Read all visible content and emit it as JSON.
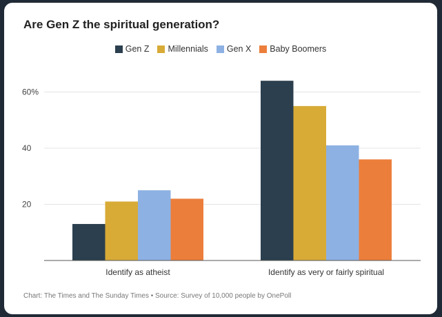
{
  "chart_data": {
    "type": "bar",
    "title": "Are Gen Z the spiritual generation?",
    "categories": [
      "Identify as atheist",
      "Identify as very or fairly spiritual"
    ],
    "series": [
      {
        "name": "Gen Z",
        "color": "#2b3f4e",
        "values": [
          13,
          64
        ]
      },
      {
        "name": "Millennials",
        "color": "#d8ab37",
        "values": [
          21,
          55
        ]
      },
      {
        "name": "Gen X",
        "color": "#8db1e3",
        "values": [
          25,
          41
        ]
      },
      {
        "name": "Baby Boomers",
        "color": "#ec7e3b",
        "values": [
          22,
          36
        ]
      }
    ],
    "yticks": [
      {
        "value": 20,
        "label": "20"
      },
      {
        "value": 40,
        "label": "40"
      },
      {
        "value": 60,
        "label": "60%"
      }
    ],
    "ylim": [
      0,
      70
    ],
    "grid": true,
    "legend": "top-center",
    "xlabel": "",
    "ylabel": ""
  },
  "footer": "Chart: The Times and The Sunday Times • Source: Survey of 10,000 people by OnePoll"
}
